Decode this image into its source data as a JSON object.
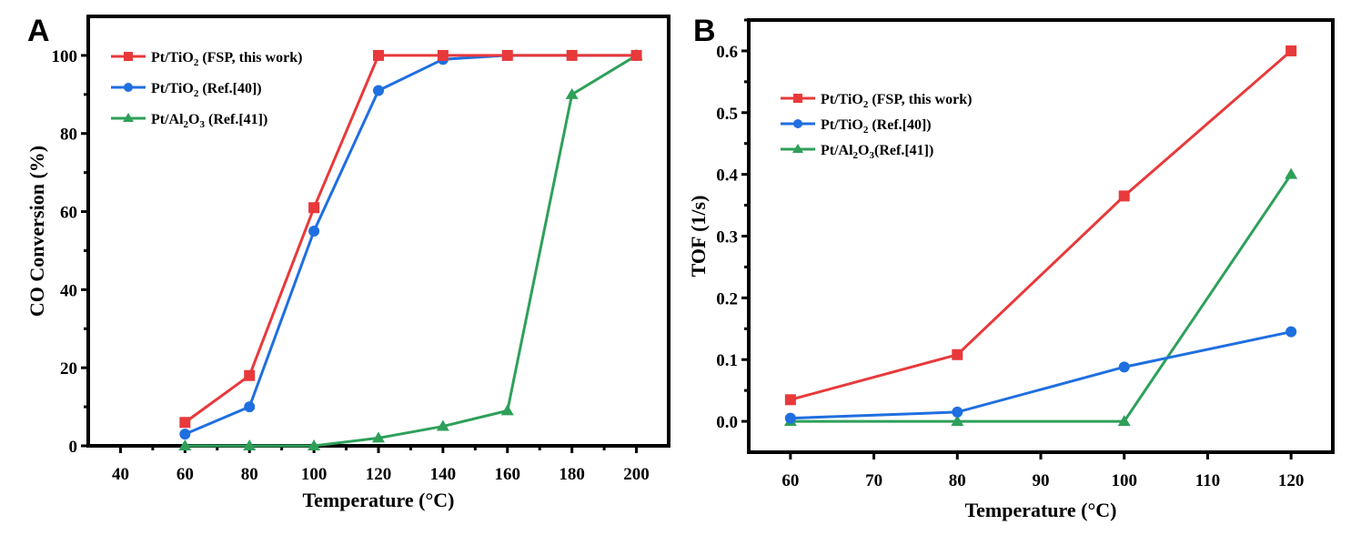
{
  "chart_data": [
    {
      "panel_label": "A",
      "type": "line",
      "xlabel": "Temperature (°C)",
      "ylabel": "CO Conversion (%)",
      "xlim": [
        30,
        210
      ],
      "ylim": [
        0,
        110
      ],
      "xticks": [
        40,
        60,
        80,
        100,
        120,
        140,
        160,
        180,
        200
      ],
      "yticks": [
        0,
        20,
        40,
        60,
        80,
        100
      ],
      "grid": false,
      "legend_position": "top-left",
      "x": [
        60,
        80,
        100,
        120,
        140,
        160,
        180,
        200
      ],
      "series": [
        {
          "name": "Pt/TiO2 (FSP, this work)",
          "legend_main": "Pt/TiO",
          "legend_sub": "2",
          "legend_rest": " (FSP, this work)",
          "color": "#e8393b",
          "marker": "square",
          "values": [
            6,
            18,
            61,
            100,
            100,
            100,
            100,
            100
          ]
        },
        {
          "name": "Pt/TiO2 (Ref.[40])",
          "legend_main": "Pt/TiO",
          "legend_sub": "2",
          "legend_rest": " (Ref.[40])",
          "color": "#1f6fe0",
          "marker": "circle",
          "values": [
            3,
            10,
            55,
            91,
            99,
            100,
            100,
            100
          ]
        },
        {
          "name": "Pt/Al2O3 (Ref.[41])",
          "legend_main": "Pt/Al",
          "legend_sub": "2",
          "legend_mid": "O",
          "legend_sub2": "3",
          "legend_rest": " (Ref.[41])",
          "color": "#2ea05a",
          "marker": "triangle",
          "values": [
            0,
            0,
            0,
            2,
            5,
            9,
            90,
            100
          ]
        }
      ]
    },
    {
      "panel_label": "B",
      "type": "line",
      "xlabel": "Temperature (°C)",
      "ylabel": "TOF (1/s)",
      "xlim": [
        55,
        125
      ],
      "ylim": [
        -0.05,
        0.65
      ],
      "xticks": [
        60,
        70,
        80,
        90,
        100,
        110,
        120
      ],
      "yticks": [
        "0.0",
        "0.1",
        "0.2",
        "0.3",
        "0.4",
        "0.5",
        "0.6"
      ],
      "grid": false,
      "legend_position": "top-left",
      "x": [
        60,
        80,
        100,
        120
      ],
      "series": [
        {
          "name": "Pt/TiO2 (FSP, this work)",
          "legend_main": "Pt/TiO",
          "legend_sub": "2",
          "legend_rest": " (FSP, this work)",
          "color": "#e8393b",
          "marker": "square",
          "values": [
            0.035,
            0.108,
            0.365,
            0.6
          ]
        },
        {
          "name": "Pt/TiO2 (Ref.[40])",
          "legend_main": "Pt/TiO",
          "legend_sub": "2",
          "legend_rest": " (Ref.[40])",
          "color": "#1f6fe0",
          "marker": "circle",
          "values": [
            0.005,
            0.015,
            0.088,
            0.145
          ]
        },
        {
          "name": "Pt/Al2O3(Ref.[41])",
          "legend_main": "Pt/Al",
          "legend_sub": "2",
          "legend_mid": "O",
          "legend_sub2": "3",
          "legend_rest": "(Ref.[41])",
          "color": "#2ea05a",
          "marker": "triangle",
          "values": [
            0,
            0,
            0,
            0.4
          ]
        }
      ]
    }
  ]
}
